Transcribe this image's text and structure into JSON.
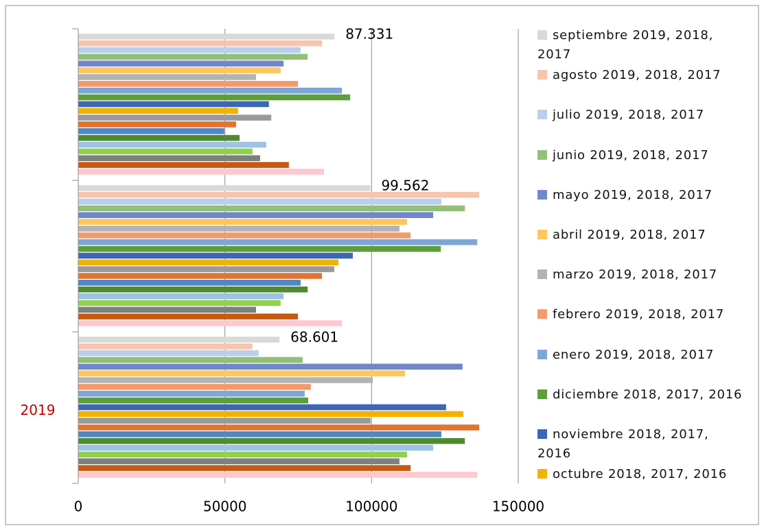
{
  "chart_data": {
    "type": "bar",
    "orientation": "horizontal",
    "categories": [
      null,
      null,
      "2019"
    ],
    "xlim": [
      0,
      150000
    ],
    "xticks": [
      0,
      50000,
      100000,
      150000
    ],
    "grid": true,
    "legend": "right",
    "series": [
      {
        "name": "septiembre 2019, 2018, 2017",
        "color": "#d9d9d9",
        "values": [
          87331,
          99562,
          68601
        ],
        "value_labels": [
          "87.331",
          "99.562",
          "68.601"
        ]
      },
      {
        "name": "agosto 2019, 2018, 2017",
        "color": "#f8c4ac",
        "values": [
          83100,
          136700,
          59400
        ]
      },
      {
        "name": "julio 2019, 2018, 2017",
        "color": "#b8d0ec",
        "values": [
          75800,
          123800,
          61500
        ]
      },
      {
        "name": "junio 2019, 2018, 2017",
        "color": "#93bf78",
        "values": [
          78200,
          131800,
          76500
        ]
      },
      {
        "name": "mayo 2019, 2018, 2017",
        "color": "#7187cb",
        "values": [
          70000,
          121000,
          131000
        ]
      },
      {
        "name": "abril 2019, 2018, 2017",
        "color": "#ffc65e",
        "values": [
          69000,
          112100,
          111400
        ]
      },
      {
        "name": "marzo 2019, 2018, 2017",
        "color": "#b3b3b3",
        "values": [
          60600,
          109500,
          100400
        ]
      },
      {
        "name": "febrero 2019, 2018, 2017",
        "color": "#f29a6c",
        "values": [
          74900,
          113300,
          79300
        ]
      },
      {
        "name": "enero 2019, 2018, 2017",
        "color": "#7ea6d8",
        "values": [
          89900,
          136000,
          77200
        ]
      },
      {
        "name": "diciembre 2018, 2017, 2016",
        "color": "#5e9e3a",
        "values": [
          92700,
          123600,
          78400
        ]
      },
      {
        "name": "noviembre 2018, 2017, 2016",
        "color": "#3d66b5",
        "values": [
          65000,
          93600,
          125400
        ]
      },
      {
        "name": "octubre 2018, 2017, 2016",
        "color": "#f0b400",
        "values": [
          54500,
          88700,
          131300
        ]
      },
      {
        "color": "#9a9a9a",
        "values": [
          65800,
          87300,
          99700
        ]
      },
      {
        "color": "#e07434",
        "values": [
          53800,
          83100,
          136700
        ]
      },
      {
        "color": "#4f88c6",
        "values": [
          49800,
          75800,
          123800
        ]
      },
      {
        "color": "#4f8a30",
        "values": [
          55000,
          78200,
          131800
        ]
      },
      {
        "color": "#9dc3e6",
        "values": [
          64100,
          70000,
          121000
        ]
      },
      {
        "color": "#92d050",
        "values": [
          59400,
          69000,
          112100
        ]
      },
      {
        "color": "#7f7f7f",
        "values": [
          62000,
          60600,
          109500
        ]
      },
      {
        "color": "#c55a11",
        "values": [
          71800,
          74900,
          113300
        ]
      },
      {
        "color": "#ffc7ce",
        "values": [
          83800,
          89900,
          136000
        ]
      }
    ]
  }
}
